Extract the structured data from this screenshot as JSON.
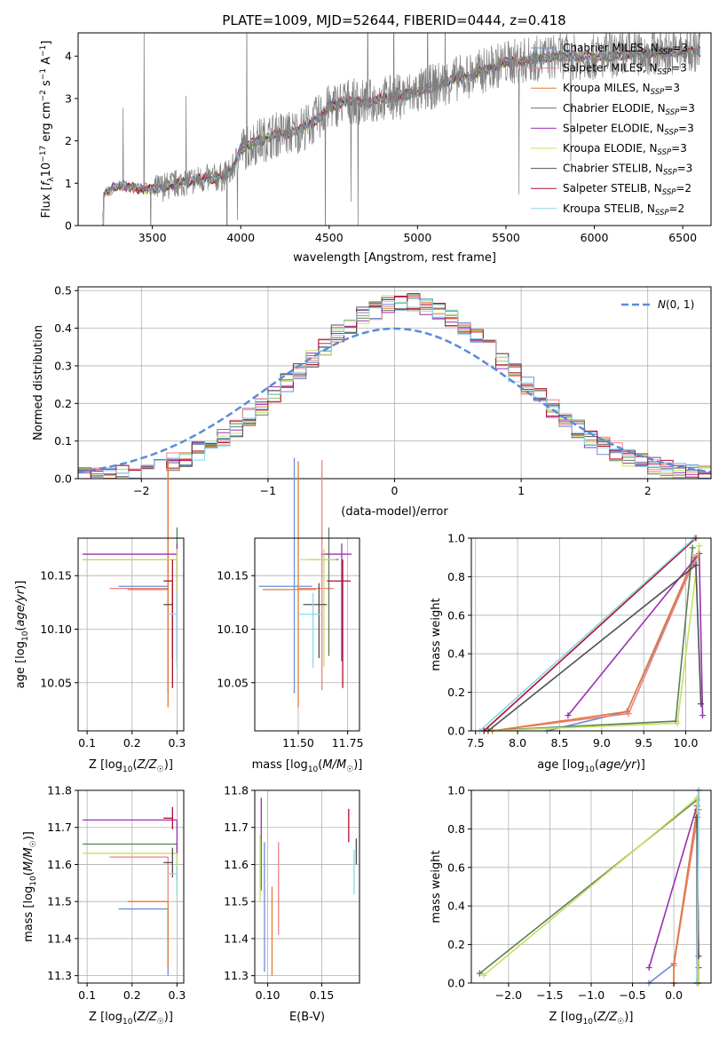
{
  "figure_title": "PLATE=1009, MJD=52644, FIBERID=0444, z=0.418",
  "colors": {
    "Chabrier MILES": "#6a8fd8",
    "Salpeter MILES": "#f08080",
    "Kroupa MILES": "#e07b39",
    "Chabrier ELODIE": "#5a7f5a",
    "Salpeter ELODIE": "#9b30b0",
    "Kroupa ELODIE": "#c8e060",
    "Chabrier STELIB": "#505050",
    "Salpeter STELIB": "#b01030",
    "Kroupa STELIB": "#88d8e8",
    "data": "#808080",
    "normal": "#5b8bd8"
  },
  "chart_data": [
    {
      "id": "spectrum",
      "type": "line",
      "xlabel": "wavelength [Angstrom, rest frame]",
      "ylabel": "Flux [f_λ 10^-17 erg cm^-2 s^-1 A^-1]",
      "xlim": [
        3080,
        6660
      ],
      "ylim": [
        0,
        4.55
      ],
      "xticks": [
        3500,
        4000,
        4500,
        5000,
        5500,
        6000,
        6500
      ],
      "yticks": [
        0,
        1,
        2,
        3,
        4
      ],
      "grid": false,
      "legend_position": "top-right",
      "continuum_points": [
        [
          3215,
          0
        ],
        [
          3225,
          0.75
        ],
        [
          3300,
          0.95
        ],
        [
          3400,
          0.9
        ],
        [
          3500,
          0.85
        ],
        [
          3600,
          0.95
        ],
        [
          3700,
          1.05
        ],
        [
          3800,
          1.1
        ],
        [
          3900,
          1.15
        ],
        [
          3950,
          1.3
        ],
        [
          4000,
          1.8
        ],
        [
          4100,
          2.0
        ],
        [
          4200,
          2.15
        ],
        [
          4300,
          2.2
        ],
        [
          4400,
          2.4
        ],
        [
          4500,
          2.8
        ],
        [
          4600,
          2.95
        ],
        [
          4700,
          2.9
        ],
        [
          4800,
          3.0
        ],
        [
          4900,
          3.05
        ],
        [
          5000,
          3.15
        ],
        [
          5100,
          3.3
        ],
        [
          5200,
          3.45
        ],
        [
          5300,
          3.55
        ],
        [
          5400,
          3.7
        ],
        [
          5500,
          3.85
        ],
        [
          5600,
          3.9
        ],
        [
          5700,
          3.95
        ],
        [
          5800,
          4.0
        ],
        [
          5900,
          3.98
        ],
        [
          6000,
          3.97
        ],
        [
          6100,
          4.0
        ],
        [
          6200,
          4.05
        ],
        [
          6300,
          4.08
        ],
        [
          6400,
          4.1
        ],
        [
          6500,
          4.1
        ],
        [
          6600,
          4.12
        ]
      ],
      "legend": [
        {
          "model": "Chabrier MILES",
          "nssp": "3"
        },
        {
          "model": "Salpeter MILES",
          "nssp": "3"
        },
        {
          "model": "Kroupa MILES",
          "nssp": "3"
        },
        {
          "model": "Chabrier ELODIE",
          "nssp": "3"
        },
        {
          "model": "Salpeter ELODIE",
          "nssp": "3"
        },
        {
          "model": "Kroupa ELODIE",
          "nssp": "3"
        },
        {
          "model": "Chabrier STELIB",
          "nssp": "3"
        },
        {
          "model": "Salpeter STELIB",
          "nssp": "2"
        },
        {
          "model": "Kroupa STELIB",
          "nssp": "2"
        }
      ]
    },
    {
      "id": "residuals",
      "type": "line",
      "xlabel": "(data-model)/error",
      "ylabel": "Normed distribution",
      "xlim": [
        -2.5,
        2.5
      ],
      "ylim": [
        0,
        0.51
      ],
      "xticks": [
        -2,
        -1,
        0,
        1,
        2
      ],
      "yticks": [
        0.0,
        0.1,
        0.2,
        0.3,
        0.4,
        0.5
      ],
      "grid": true,
      "legend": [
        "N(0,1)"
      ],
      "legend_position": "top-right",
      "bin_width": 0.1
    },
    {
      "id": "age_vs_Z",
      "type": "scatter",
      "xlabel": "Z [log10(Z/Z☉)]",
      "ylabel": "age [log10(age/yr)]",
      "xlim": [
        0.08,
        0.315
      ],
      "ylim": [
        10.005,
        10.185
      ],
      "xticks": [
        0.1,
        0.2,
        0.3
      ],
      "yticks": [
        10.05,
        10.1,
        10.15
      ],
      "grid": true
    },
    {
      "id": "age_vs_mass",
      "type": "scatter",
      "xlabel": "mass [log10(M/M☉)]",
      "ylabel": "",
      "xlim": [
        11.28,
        11.81
      ],
      "ylim": [
        10.005,
        10.185
      ],
      "xticks": [
        11.5,
        11.75
      ],
      "yticks": [
        10.05,
        10.1,
        10.15
      ],
      "grid": true
    },
    {
      "id": "weight_vs_age",
      "type": "line",
      "xlabel": "age [log10(age/yr)]",
      "ylabel": "mass weight",
      "xlim": [
        7.45,
        10.3
      ],
      "ylim": [
        0,
        1
      ],
      "xticks": [
        7.5,
        8.0,
        8.5,
        9.0,
        9.5,
        10.0
      ],
      "yticks": [
        0.0,
        0.2,
        0.4,
        0.6,
        0.8,
        1.0
      ],
      "grid": true,
      "series": [
        {
          "model": "Chabrier MILES",
          "points": [
            [
              8.35,
              0.0
            ],
            [
              9.3,
              0.1
            ],
            [
              10.1,
              0.88
            ]
          ]
        },
        {
          "model": "Salpeter MILES",
          "points": [
            [
              7.7,
              0.0
            ],
            [
              9.32,
              0.09
            ],
            [
              10.12,
              0.9
            ]
          ]
        },
        {
          "model": "Kroupa MILES",
          "points": [
            [
              7.7,
              0.0
            ],
            [
              9.3,
              0.1
            ],
            [
              10.1,
              0.9
            ]
          ]
        },
        {
          "model": "Chabrier ELODIE",
          "points": [
            [
              7.6,
              0.0
            ],
            [
              9.88,
              0.05
            ],
            [
              10.08,
              0.95
            ]
          ]
        },
        {
          "model": "Salpeter ELODIE",
          "points": [
            [
              8.6,
              0.08
            ],
            [
              10.16,
              0.92
            ],
            [
              10.2,
              0.08
            ]
          ]
        },
        {
          "model": "Kroupa ELODIE",
          "points": [
            [
              7.65,
              0.0
            ],
            [
              9.9,
              0.04
            ],
            [
              10.16,
              0.96
            ]
          ]
        },
        {
          "model": "Chabrier STELIB",
          "points": [
            [
              7.65,
              0.0
            ],
            [
              10.12,
              0.86
            ],
            [
              10.18,
              0.14
            ]
          ]
        },
        {
          "model": "Salpeter STELIB",
          "points": [
            [
              7.6,
              0.0
            ],
            [
              10.12,
              1.0
            ]
          ]
        },
        {
          "model": "Kroupa STELIB",
          "points": [
            [
              7.55,
              0.0
            ],
            [
              10.1,
              1.0
            ]
          ]
        }
      ]
    },
    {
      "id": "mass_vs_Z",
      "type": "scatter",
      "xlabel": "Z [log10(Z/Z☉)]",
      "ylabel": "mass [log10(M/M☉)]",
      "xlim": [
        0.08,
        0.315
      ],
      "ylim": [
        11.28,
        11.8
      ],
      "xticks": [
        0.1,
        0.2,
        0.3
      ],
      "yticks": [
        11.3,
        11.4,
        11.5,
        11.6,
        11.7,
        11.8
      ],
      "grid": true
    },
    {
      "id": "mass_vs_EBV",
      "type": "scatter",
      "xlabel": "E(B-V)",
      "ylabel": "",
      "xlim": [
        0.088,
        0.185
      ],
      "ylim": [
        11.28,
        11.8
      ],
      "xticks": [
        0.1,
        0.15
      ],
      "yticks": [
        11.3,
        11.4,
        11.5,
        11.6,
        11.7,
        11.8
      ],
      "grid": true
    },
    {
      "id": "weight_vs_Z",
      "type": "line",
      "xlabel": "Z [log10(Z/Z☉)]",
      "ylabel": "mass weight",
      "xlim": [
        -2.45,
        0.45
      ],
      "ylim": [
        0,
        1
      ],
      "xticks": [
        -2.0,
        -1.5,
        -1.0,
        -0.5,
        0.0
      ],
      "yticks": [
        0.0,
        0.2,
        0.4,
        0.6,
        0.8,
        1.0
      ],
      "grid": true,
      "series": [
        {
          "model": "Chabrier MILES",
          "points": [
            [
              -0.3,
              0.0
            ],
            [
              0.0,
              0.1
            ],
            [
              0.28,
              0.88
            ]
          ]
        },
        {
          "model": "Salpeter MILES",
          "points": [
            [
              0.0,
              0.0
            ],
            [
              0.0,
              0.09
            ],
            [
              0.3,
              0.9
            ]
          ]
        },
        {
          "model": "Kroupa MILES",
          "points": [
            [
              0.0,
              0.0
            ],
            [
              0.0,
              0.1
            ],
            [
              0.28,
              0.9
            ]
          ]
        },
        {
          "model": "Chabrier ELODIE",
          "points": [
            [
              -2.35,
              0.05
            ],
            [
              0.28,
              0.95
            ],
            [
              0.3,
              0.0
            ]
          ]
        },
        {
          "model": "Salpeter ELODIE",
          "points": [
            [
              -0.3,
              0.08
            ],
            [
              0.28,
              0.92
            ],
            [
              0.3,
              0.08
            ]
          ]
        },
        {
          "model": "Kroupa ELODIE",
          "points": [
            [
              -2.3,
              0.04
            ],
            [
              0.28,
              0.96
            ],
            [
              0.3,
              0.0
            ]
          ]
        },
        {
          "model": "Chabrier STELIB",
          "points": [
            [
              0.28,
              0.0
            ],
            [
              0.28,
              0.86
            ],
            [
              0.3,
              0.14
            ]
          ]
        },
        {
          "model": "Salpeter STELIB",
          "points": [
            [
              0.28,
              0.0
            ],
            [
              0.3,
              1.0
            ]
          ]
        },
        {
          "model": "Kroupa STELIB",
          "points": [
            [
              0.28,
              0.0
            ],
            [
              0.3,
              1.0
            ]
          ]
        }
      ]
    }
  ],
  "errorbars": [
    {
      "model": "Chabrier MILES",
      "age": 10.14,
      "age_err": [
        0.1,
        0.12
      ],
      "Z": 0.28,
      "Z_err": [
        0.11,
        0.0
      ],
      "mass": 11.48,
      "mass_err": [
        0.18,
        0.0
      ],
      "ebv": 0.097,
      "ebv_err": [
        11.31,
        11.66
      ]
    },
    {
      "model": "Salpeter MILES",
      "age": 10.138,
      "age_err": [
        0.095,
        0.12
      ],
      "Z": 0.28,
      "Z_err": [
        0.13,
        0.0
      ],
      "mass": 11.62,
      "mass_err": [
        0.12,
        0.0
      ],
      "ebv": 0.11,
      "ebv_err": [
        11.41,
        11.66
      ]
    },
    {
      "model": "Kroupa MILES",
      "age": 10.137,
      "age_err": [
        0.11,
        0.12
      ],
      "Z": 0.28,
      "Z_err": [
        0.09,
        0.0
      ],
      "mass": 11.5,
      "mass_err": [
        0.18,
        0.0
      ],
      "ebv": 0.104,
      "ebv_err": [
        11.3,
        11.54
      ]
    },
    {
      "model": "Chabrier ELODIE",
      "age": 10.165,
      "age_err": [
        0.09,
        0.03
      ],
      "Z": 0.3,
      "Z_err": [
        0.21,
        0.0
      ],
      "mass": 11.655,
      "mass_err": [
        0.1,
        0.0
      ],
      "ebv": 0.094,
      "ebv_err": [
        11.53,
        11.68
      ]
    },
    {
      "model": "Salpeter ELODIE",
      "age": 10.17,
      "age_err": [
        0.1,
        0.01
      ],
      "Z": 0.3,
      "Z_err": [
        0.21,
        0.0
      ],
      "mass": 11.72,
      "mass_err": [
        0.1,
        0.0
      ],
      "ebv": 0.094,
      "ebv_err": [
        11.67,
        11.78
      ]
    },
    {
      "model": "Kroupa ELODIE",
      "age": 10.165,
      "age_err": [
        0.1,
        0.01
      ],
      "Z": 0.3,
      "Z_err": [
        0.21,
        0.0
      ],
      "mass": 11.63,
      "mass_err": [
        0.12,
        0.0
      ],
      "ebv": 0.093,
      "ebv_err": [
        11.5,
        11.68
      ]
    },
    {
      "model": "Chabrier STELIB",
      "age": 10.123,
      "age_err": [
        0.05,
        0.02
      ],
      "Z": 0.29,
      "Z_err": [
        0.02,
        0.0
      ],
      "mass": 11.605,
      "mass_err": [
        0.04,
        0.04
      ],
      "ebv": 0.182,
      "ebv_err": [
        11.6,
        11.67
      ]
    },
    {
      "model": "Salpeter STELIB",
      "age": 10.145,
      "age_err": [
        0.1,
        0.02
      ],
      "Z": 0.29,
      "Z_err": [
        0.02,
        0.0
      ],
      "mass": 11.725,
      "mass_err": [
        0.03,
        0.03
      ],
      "ebv": 0.175,
      "ebv_err": [
        11.66,
        11.75
      ]
    },
    {
      "model": "Kroupa STELIB",
      "age": 10.114,
      "age_err": [
        0.05,
        0.02
      ],
      "Z": 0.3,
      "Z_err": [
        0.02,
        0.0
      ],
      "mass": 11.575,
      "mass_err": [
        0.06,
        0.02
      ],
      "ebv": 0.18,
      "ebv_err": [
        11.52,
        11.64
      ]
    }
  ]
}
